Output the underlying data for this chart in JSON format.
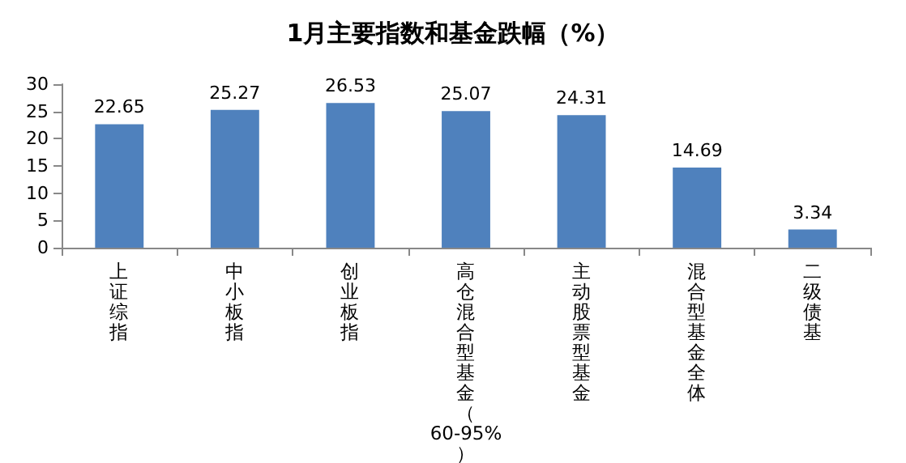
{
  "chart_data": {
    "type": "bar",
    "title": "1月主要指数和基金跌幅（%）",
    "categories": [
      "上证综指",
      "中小板指",
      "创业板指",
      "高仓混合型基金（60-95%）",
      "主动股票型基金",
      "混合型基金全体",
      "二级债基"
    ],
    "values": [
      22.65,
      25.27,
      26.53,
      25.07,
      24.31,
      14.69,
      3.34
    ],
    "color": "#4f81bd",
    "ylim": [
      0,
      30
    ],
    "yticks": [
      0,
      5,
      10,
      15,
      20,
      25,
      30
    ],
    "grid": false,
    "data_labels": true
  }
}
